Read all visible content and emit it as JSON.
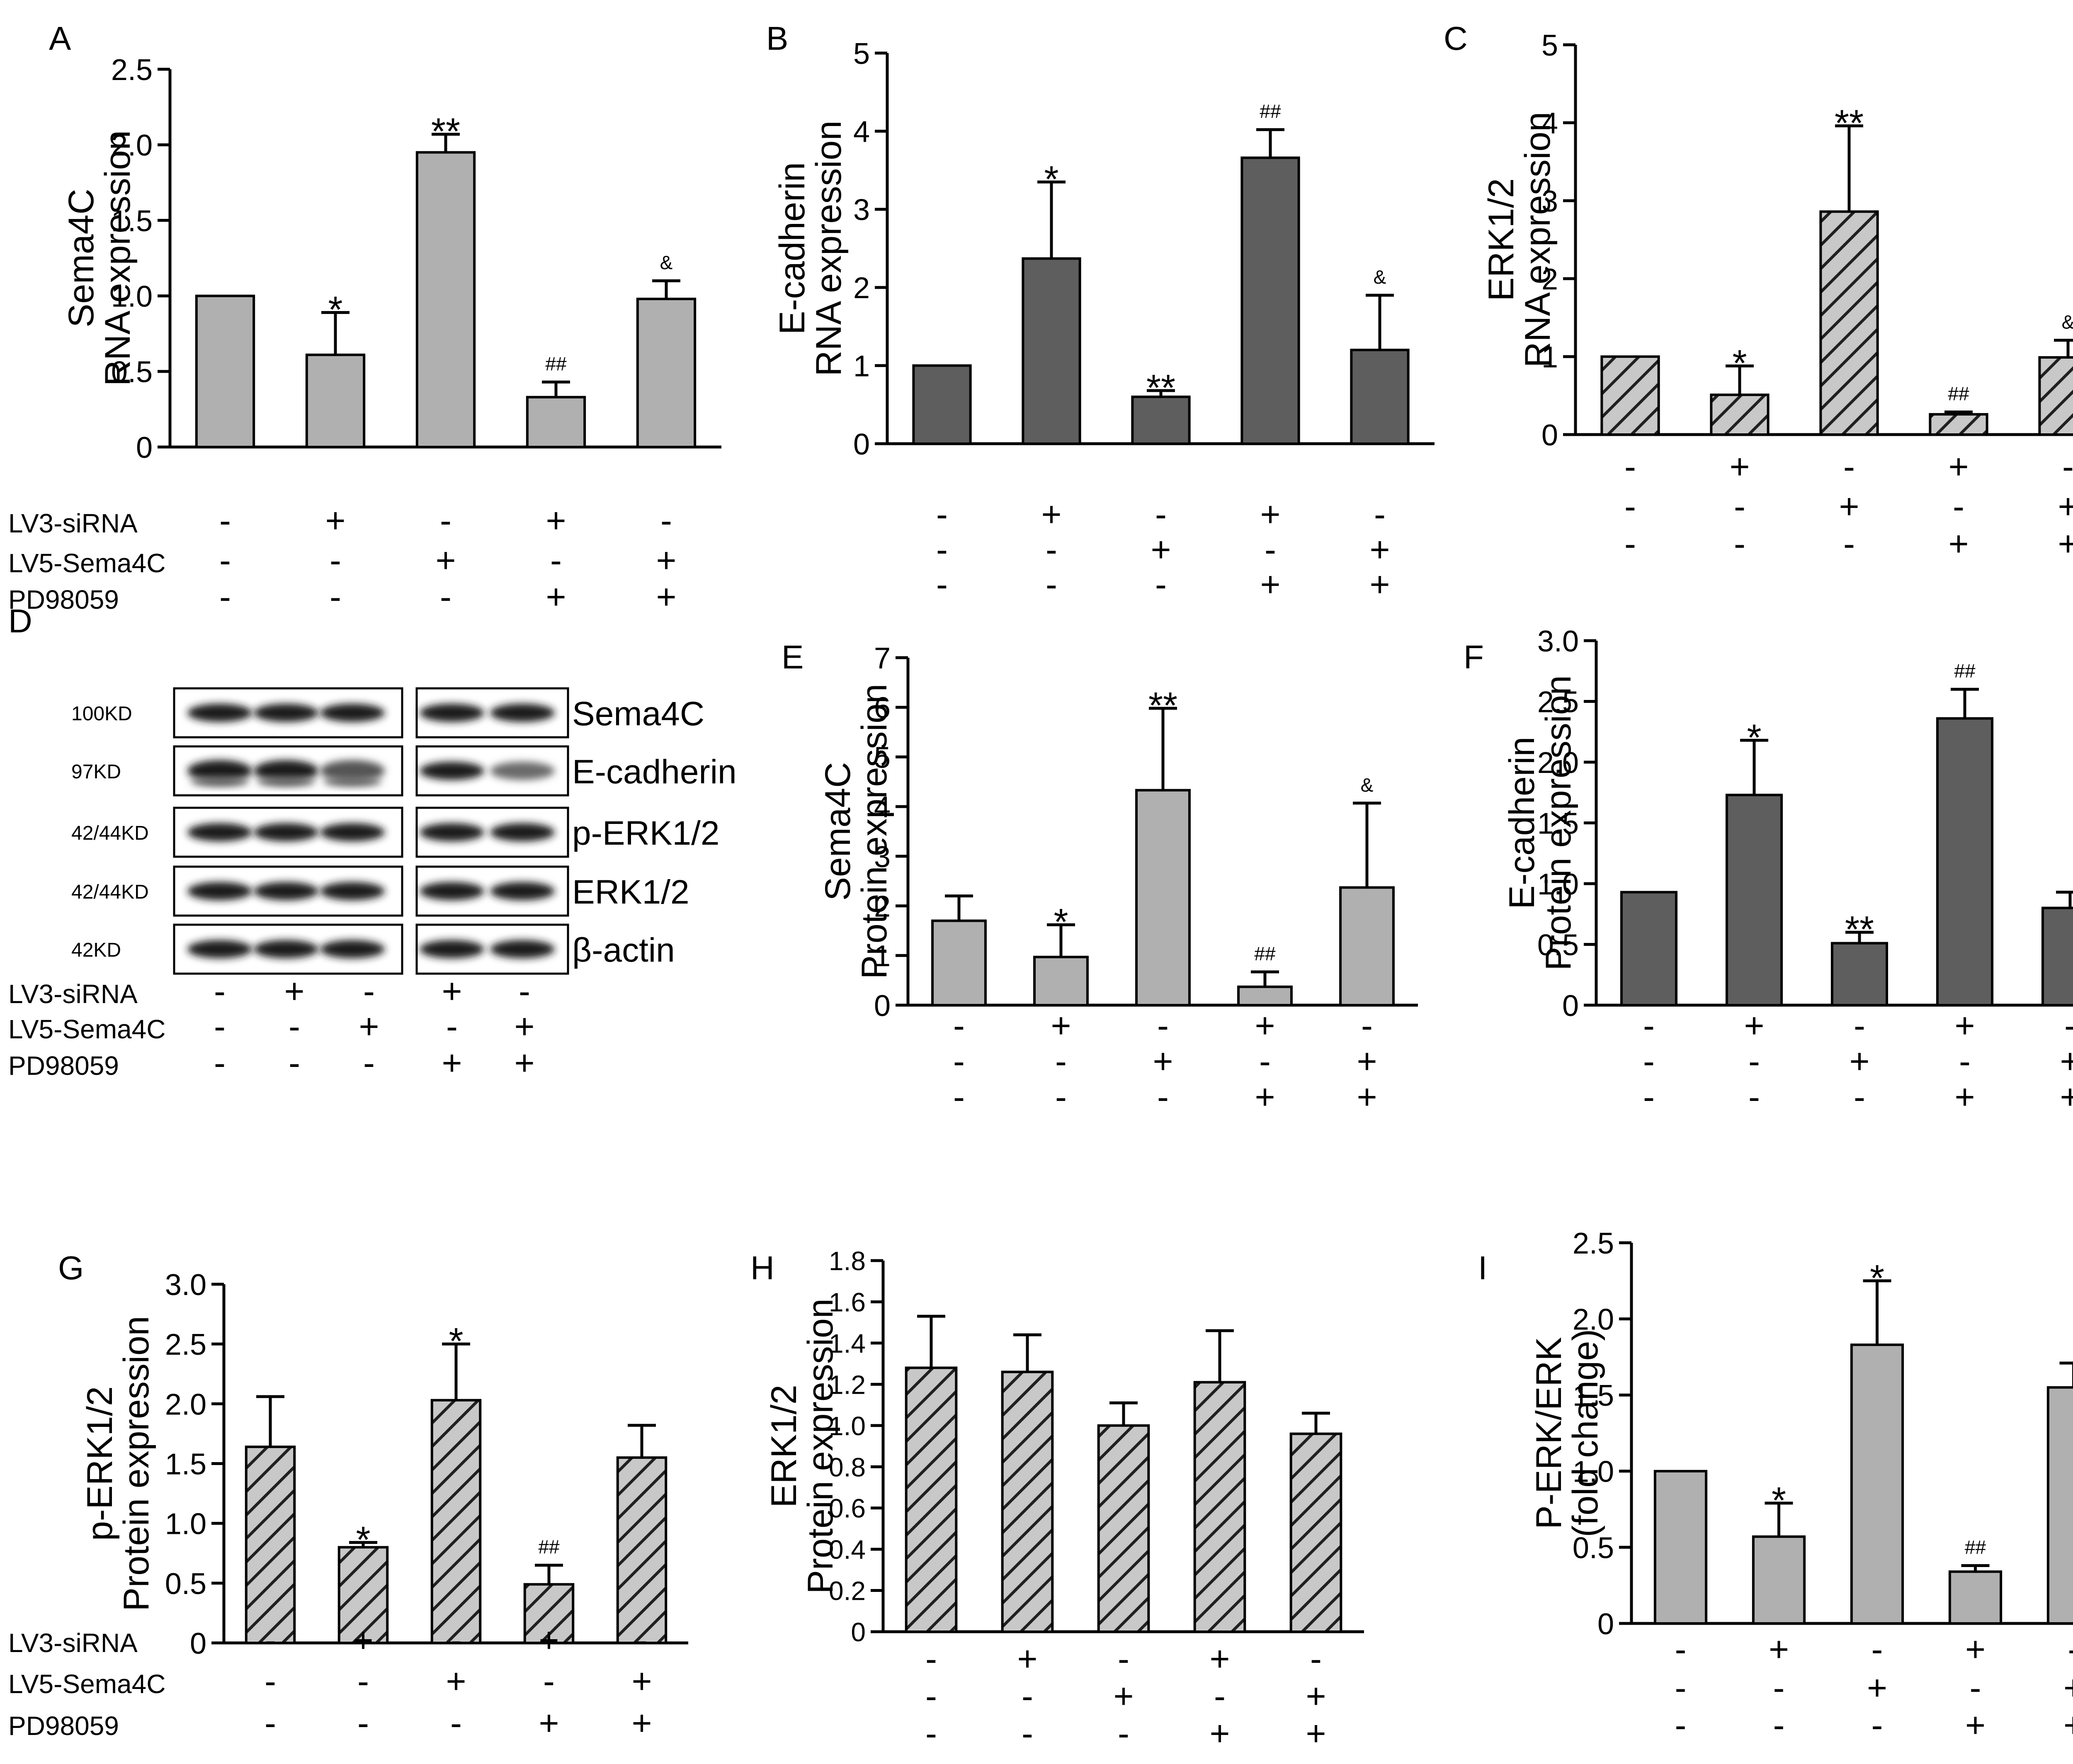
{
  "figure": {
    "treatments": [
      "LV3-siRNA",
      "LV5-Sema4C",
      "PD98059"
    ],
    "treatment_signs": [
      [
        "-",
        "+",
        "-",
        "+",
        "-"
      ],
      [
        "-",
        "-",
        "+",
        "-",
        "+"
      ],
      [
        "-",
        "-",
        "-",
        "+",
        "+"
      ]
    ],
    "colors": {
      "light_gray": "#b0b0b0",
      "dark_gray": "#5e5e5e",
      "hatch_gray": "#8c8c8c"
    }
  },
  "chart_data": [
    {
      "panel": "A",
      "type": "bar",
      "ylabel": [
        "Sema4C",
        "RNA expression"
      ],
      "ylim": [
        0,
        2.5
      ],
      "ticks": [
        0,
        0.5,
        1.0,
        1.5,
        2.0,
        2.5
      ],
      "tick_labels": [
        "0",
        "0.5",
        "1.0",
        "1.5",
        "2.0",
        "2.5"
      ],
      "values": [
        1.0,
        0.61,
        1.95,
        0.33,
        0.98
      ],
      "errors": [
        0,
        0.28,
        0.12,
        0.1,
        0.12
      ],
      "annotations": [
        "",
        "*",
        "**",
        "##",
        "&"
      ],
      "fill": "light",
      "show_treatment_names": true
    },
    {
      "panel": "B",
      "type": "bar",
      "ylabel": [
        "E-cadherin",
        "RNA expression"
      ],
      "ylim": [
        0,
        5
      ],
      "ticks": [
        0,
        1,
        2,
        3,
        4,
        5
      ],
      "tick_labels": [
        "0",
        "1",
        "2",
        "3",
        "4",
        "5"
      ],
      "values": [
        1.0,
        2.37,
        0.6,
        3.66,
        1.2
      ],
      "errors": [
        0,
        0.98,
        0.08,
        0.36,
        0.7
      ],
      "annotations": [
        "",
        "*",
        "**",
        "##",
        "&"
      ],
      "fill": "dark",
      "show_treatment_names": false
    },
    {
      "panel": "C",
      "type": "bar",
      "ylabel": [
        "ERK1/2",
        "RNA expression"
      ],
      "ylim": [
        0,
        5
      ],
      "ticks": [
        0,
        1,
        2,
        3,
        4,
        5
      ],
      "tick_labels": [
        "0",
        "1",
        "2",
        "3",
        "4",
        "5"
      ],
      "values": [
        1.0,
        0.51,
        2.86,
        0.26,
        0.99
      ],
      "errors": [
        0,
        0.37,
        1.1,
        0.03,
        0.22
      ],
      "annotations": [
        "",
        "*",
        "**",
        "##",
        "&"
      ],
      "fill": "hatch",
      "show_treatment_names": false
    },
    {
      "panel": "E",
      "type": "bar",
      "ylabel": [
        "Sema4C",
        "Protein expression"
      ],
      "ylim": [
        0,
        7
      ],
      "ticks": [
        0,
        1,
        2,
        3,
        4,
        5,
        6,
        7
      ],
      "tick_labels": [
        "0",
        "1",
        "2",
        "3",
        "4",
        "5",
        "6",
        "7"
      ],
      "values": [
        1.7,
        0.97,
        4.33,
        0.37,
        2.37
      ],
      "errors": [
        0.5,
        0.65,
        1.65,
        0.3,
        1.7
      ],
      "annotations": [
        "",
        "*",
        "**",
        "##",
        "&"
      ],
      "fill": "light",
      "show_treatment_names": false
    },
    {
      "panel": "F",
      "type": "bar",
      "ylabel": [
        "E-cadherin",
        "Protein expression"
      ],
      "ylim": [
        0,
        3.0
      ],
      "ticks": [
        0,
        0.5,
        1.0,
        1.5,
        2.0,
        2.5,
        3.0
      ],
      "tick_labels": [
        "0",
        "0.5",
        "1.0",
        "1.5",
        "2.0",
        "2.5",
        "3.0"
      ],
      "values": [
        0.93,
        1.73,
        0.51,
        2.36,
        0.8
      ],
      "errors": [
        0,
        0.45,
        0.09,
        0.24,
        0.13
      ],
      "annotations": [
        "",
        "*",
        "**",
        "##",
        ""
      ],
      "fill": "dark",
      "show_treatment_names": false
    },
    {
      "panel": "G",
      "type": "bar",
      "ylabel": [
        "p-ERK1/2",
        "Protein expression"
      ],
      "ylim": [
        0,
        3.0
      ],
      "ticks": [
        0,
        0.5,
        1.0,
        1.5,
        2.0,
        2.5,
        3.0
      ],
      "tick_labels": [
        "0",
        "0.5",
        "1.0",
        "1.5",
        "2.0",
        "2.5",
        "3.0"
      ],
      "values": [
        1.64,
        0.8,
        2.03,
        0.49,
        1.55
      ],
      "errors": [
        0.42,
        0.04,
        0.47,
        0.16,
        0.27
      ],
      "annotations": [
        "",
        "*",
        "*",
        "##",
        ""
      ],
      "fill": "hatch",
      "show_treatment_names": true
    },
    {
      "panel": "H",
      "type": "bar",
      "ylabel": [
        "ERK1/2",
        "Protein expression"
      ],
      "ylim": [
        0,
        1.8
      ],
      "ticks": [
        0,
        0.2,
        0.4,
        0.6,
        0.8,
        1.0,
        1.2,
        1.4,
        1.6,
        1.8
      ],
      "tick_labels": [
        "0",
        "0.2",
        "0.4",
        "0.6",
        "0.8",
        "1.0",
        "1.2",
        "1.4",
        "1.6",
        "1.8"
      ],
      "values": [
        1.28,
        1.26,
        1.0,
        1.21,
        0.96
      ],
      "errors": [
        0.25,
        0.18,
        0.11,
        0.25,
        0.1
      ],
      "annotations": [
        "",
        "",
        "",
        "",
        ""
      ],
      "fill": "hatch",
      "show_treatment_names": false
    },
    {
      "panel": "I",
      "type": "bar",
      "ylabel": [
        "P-ERK/ERK",
        "(fold change)"
      ],
      "ylim": [
        0,
        2.5
      ],
      "ticks": [
        0,
        0.5,
        1.0,
        1.5,
        2.0,
        2.5
      ],
      "tick_labels": [
        "0",
        "0.5",
        "1.0",
        "1.5",
        "2.0",
        "2.5"
      ],
      "values": [
        1.0,
        0.57,
        1.83,
        0.34,
        1.55
      ],
      "errors": [
        0,
        0.22,
        0.42,
        0.04,
        0.16
      ],
      "annotations": [
        "",
        "*",
        "*",
        "##",
        ""
      ],
      "fill": "light",
      "show_treatment_names": false
    }
  ],
  "western_blot": {
    "panel": "D",
    "rows": [
      {
        "kd": "100KD",
        "protein": "Sema4C"
      },
      {
        "kd": "97KD",
        "protein": "E-cadherin"
      },
      {
        "kd": "42/44KD",
        "protein": "p-ERK1/2"
      },
      {
        "kd": "42/44KD",
        "protein": "ERK1/2"
      },
      {
        "kd": "42KD",
        "protein": "β-actin"
      }
    ]
  }
}
